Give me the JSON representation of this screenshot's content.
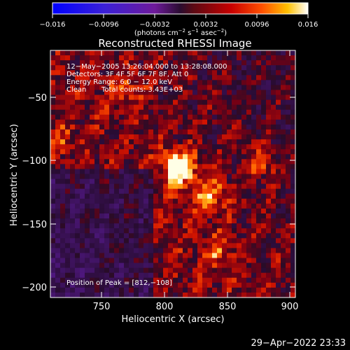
{
  "colorbar": {
    "ticks": [
      "−0.016",
      "−0.0096",
      "−0.0032",
      "0.0032",
      "0.0096",
      "0.016"
    ],
    "units_main": "(photons cm",
    "units_exp1": "−2",
    "units_mid1": " s",
    "units_exp2": "−1",
    "units_mid2": " asec",
    "units_exp3": "−2",
    "units_close": ")",
    "range": [
      -0.016,
      0.016
    ]
  },
  "plot": {
    "title": "Reconstructed RHESSI Image",
    "xlabel": "Heliocentric X (arcsec)",
    "ylabel": "Heliocentric Y (arcsec)",
    "xticks": [
      "750",
      "800",
      "850",
      "900"
    ],
    "yticks": [
      "−50",
      "−100",
      "−150",
      "−200"
    ],
    "xlim": [
      712,
      902
    ],
    "ylim": [
      -208,
      -18
    ]
  },
  "overlay": {
    "time": "12−May−2005 13:26:04.000 to 13:28:08.000",
    "detectors": "Detectors: 3F 4F 5F 6F 7F 8F, Att 0",
    "energy": "Energy Range: 6.0 − 12.0 keV",
    "algorithm": "Clean",
    "counts": "Total counts: 3.43E+03",
    "peak": "Position of Peak = [812,−108]"
  },
  "timestamp": "29−Apr−2022 23:33",
  "sources": [
    {
      "x": 812,
      "y": -108,
      "amp": 1.0
    },
    {
      "x": 836,
      "y": -128,
      "amp": 0.62
    },
    {
      "x": 876,
      "y": -105,
      "amp": 0.45
    },
    {
      "x": 842,
      "y": -172,
      "amp": 0.4
    },
    {
      "x": 772,
      "y": -48,
      "amp": 0.35
    },
    {
      "x": 720,
      "y": -88,
      "amp": 0.35
    }
  ]
}
